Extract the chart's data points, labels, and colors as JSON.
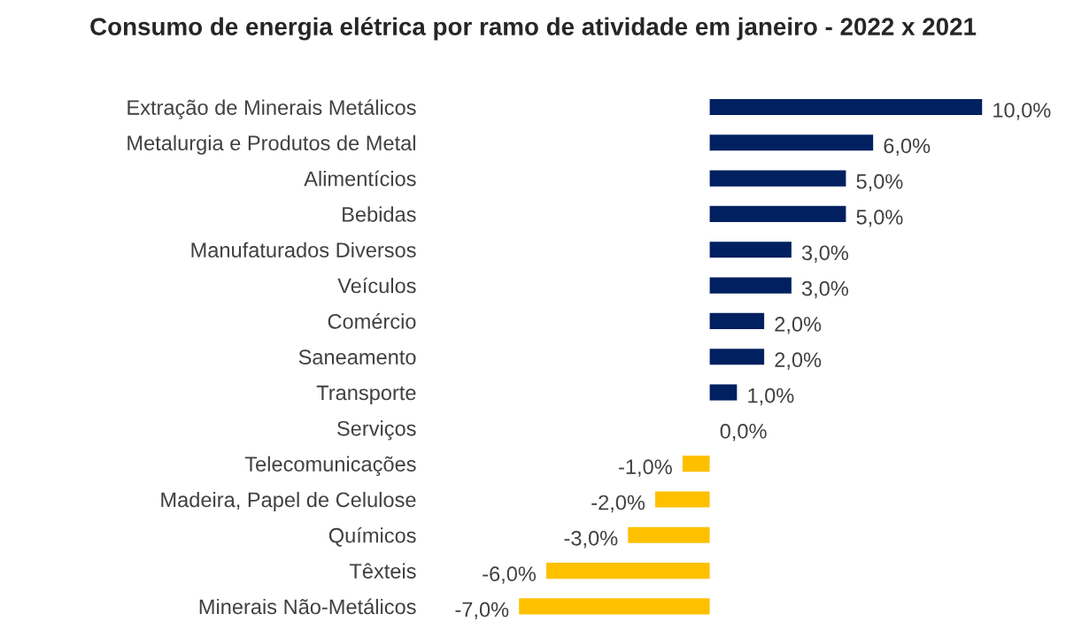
{
  "chart_data": {
    "type": "bar",
    "orientation": "horizontal",
    "title": "Consumo de energia elétrica por ramo de atividade em janeiro - 2022 x 2021",
    "categories": [
      "Extração de Minerais Metálicos",
      "Metalurgia e Produtos de Metal",
      "Alimentícios",
      "Bebidas",
      "Manufaturados Diversos",
      "Veículos",
      "Comércio",
      "Saneamento",
      "Transporte",
      "Serviços",
      "Telecomunicações",
      "Madeira, Papel de Celulose",
      "Químicos",
      "Têxteis",
      "Minerais Não-Metálicos"
    ],
    "values": [
      10.0,
      6.0,
      5.0,
      5.0,
      3.0,
      3.0,
      2.0,
      2.0,
      1.0,
      0.0,
      -1.0,
      -2.0,
      -3.0,
      -6.0,
      -7.0
    ],
    "colors": [
      "#002060",
      "#002060",
      "#002060",
      "#002060",
      "#002060",
      "#002060",
      "#002060",
      "#002060",
      "#002060",
      "#002060",
      "#ffc000",
      "#ffc000",
      "#ffc000",
      "#ffc000",
      "#ffc000"
    ],
    "value_labels": [
      "10,0%",
      "6,0%",
      "5,0%",
      "5,0%",
      "3,0%",
      "3,0%",
      "2,0%",
      "2,0%",
      "1,0%",
      "0,0%",
      "-1,0%",
      "-2,0%",
      "-3,0%",
      "-6,0%",
      "-7,0%"
    ],
    "tick_labels": "y",
    "grid": false,
    "legend": false
  }
}
